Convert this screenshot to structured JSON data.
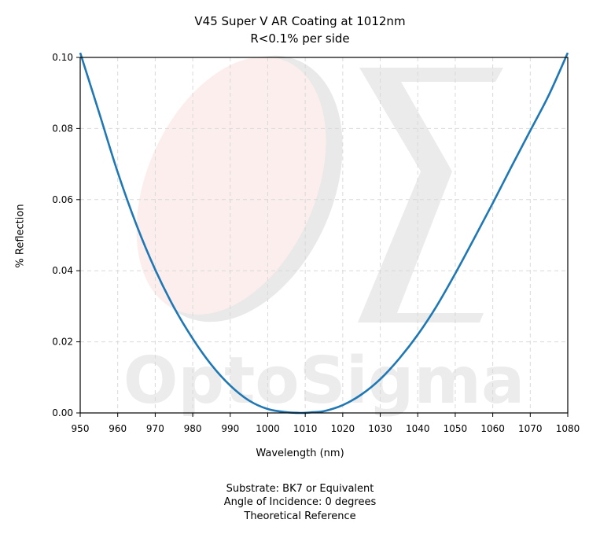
{
  "chart_data": {
    "type": "line",
    "title": "V45 Super V AR Coating at 1012nm",
    "subtitle": "R<0.1% per side",
    "xlabel": "Wavelength (nm)",
    "ylabel": "% Reflection",
    "xlim": [
      950,
      1080
    ],
    "ylim": [
      0,
      0.1
    ],
    "xticks": [
      950,
      960,
      970,
      980,
      990,
      1000,
      1010,
      1020,
      1030,
      1040,
      1050,
      1060,
      1070,
      1080
    ],
    "yticks": [
      "0.00",
      "0.02",
      "0.04",
      "0.06",
      "0.08",
      "0.10"
    ],
    "grid": true,
    "series": [
      {
        "color": "#1f77b4",
        "x": [
          950,
          955,
          960,
          965,
          970,
          975,
          980,
          985,
          990,
          995,
          1000,
          1005,
          1009,
          1012,
          1015,
          1020,
          1025,
          1030,
          1035,
          1040,
          1045,
          1050,
          1055,
          1060,
          1065,
          1070,
          1075,
          1080
        ],
        "y": [
          0.1013,
          0.0846,
          0.0677,
          0.0529,
          0.0403,
          0.0297,
          0.0209,
          0.0135,
          0.0077,
          0.0035,
          0.0011,
          0.0002,
          0.0,
          0.0002,
          0.0005,
          0.0022,
          0.0052,
          0.0095,
          0.0152,
          0.022,
          0.03,
          0.0392,
          0.049,
          0.059,
          0.0693,
          0.0794,
          0.0895,
          0.1013
        ]
      }
    ]
  },
  "footer": {
    "line1": "Substrate: BK7 or Equivalent",
    "line2": "Angle of Incidence: 0 degrees",
    "line3": "Theoretical Reference"
  },
  "watermark": {
    "text": "OptoSigma"
  }
}
